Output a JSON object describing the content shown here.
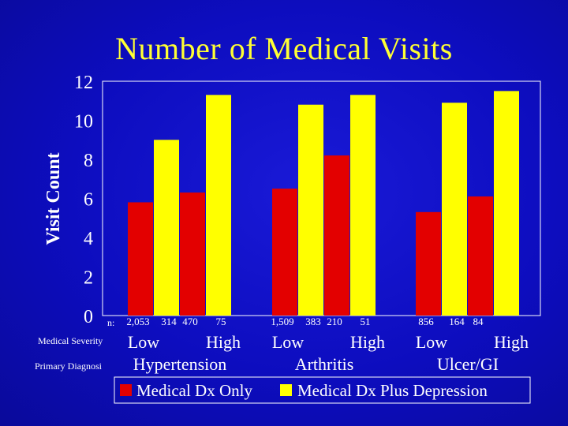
{
  "title": "Number of Medical Visits",
  "row_labels": {
    "n": "n:",
    "severity": "Medical Severity",
    "diagnosis": "Primary Diagnosi"
  },
  "colors": {
    "series1": "#e30000",
    "series2": "#ffff00",
    "background": "#0d0dbf",
    "text": "#ffffff",
    "title": "#ffff33"
  },
  "chart_data": {
    "type": "bar",
    "title": "Number of Medical Visits",
    "ylabel": "Visit Count",
    "ylim": [
      0,
      12
    ],
    "yticks": [
      0,
      2,
      4,
      6,
      8,
      10,
      12
    ],
    "groups": [
      {
        "diagnosis": "Hypertension",
        "severities": [
          {
            "label": "Low",
            "n": [
              "2,053",
              "314"
            ]
          },
          {
            "label": "High",
            "n": [
              "470",
              "75"
            ]
          }
        ]
      },
      {
        "diagnosis": "Arthritis",
        "severities": [
          {
            "label": "Low",
            "n": [
              "1,509",
              "383"
            ]
          },
          {
            "label": "High",
            "n": [
              "210",
              "51"
            ]
          }
        ]
      },
      {
        "diagnosis": "Ulcer/GI",
        "severities": [
          {
            "label": "Low",
            "n": [
              "856",
              "164"
            ]
          },
          {
            "label": "High",
            "n": [
              "84",
              ""
            ]
          }
        ]
      }
    ],
    "series": [
      {
        "name": "Medical Dx Only",
        "values": [
          5.8,
          6.3,
          6.5,
          8.2,
          5.3,
          6.1
        ]
      },
      {
        "name": "Medical Dx Plus Depression",
        "values": [
          9.0,
          11.3,
          10.8,
          11.3,
          10.9,
          11.5
        ]
      }
    ],
    "legend": "bottom"
  }
}
